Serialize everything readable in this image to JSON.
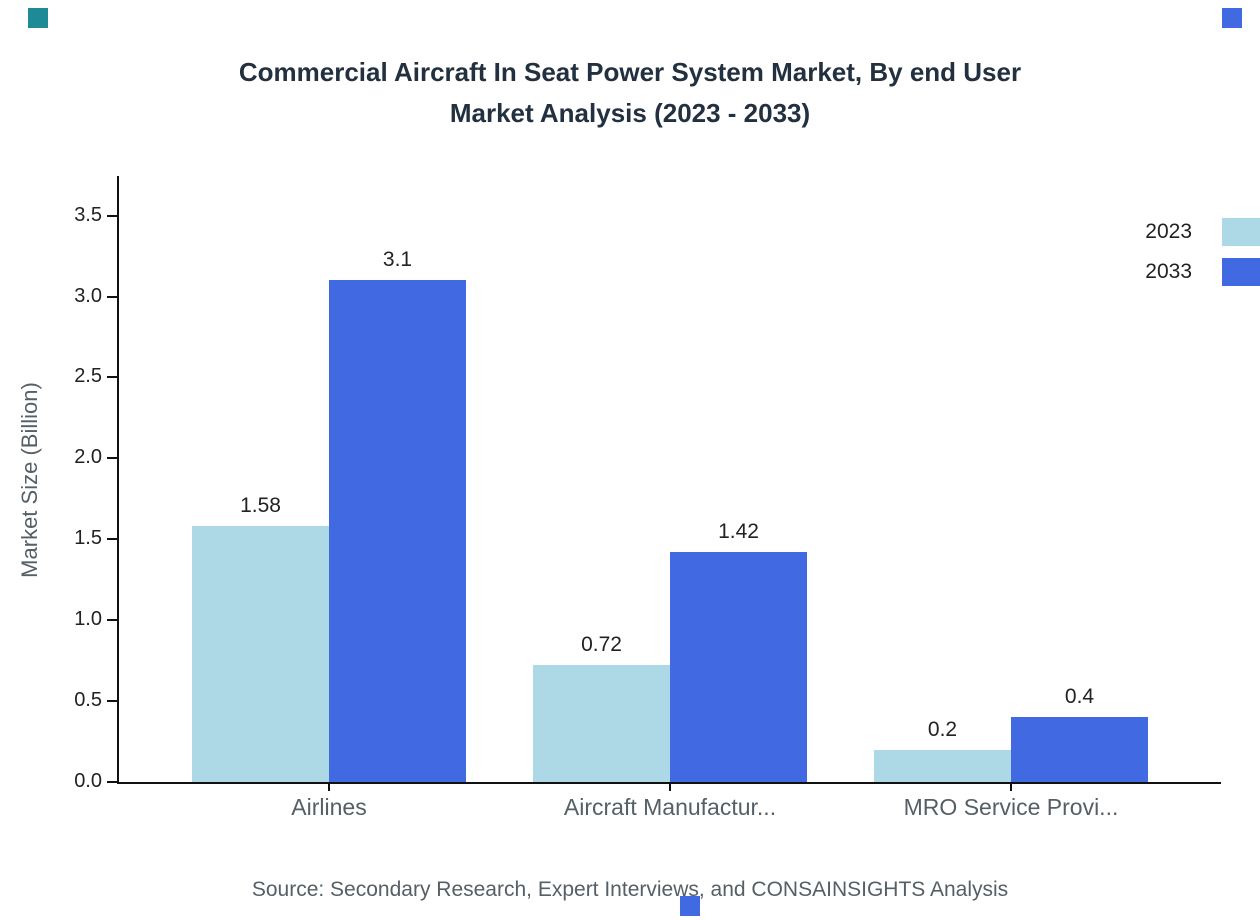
{
  "title": {
    "line1": "Commercial Aircraft In Seat Power System Market, By end User",
    "line2": "Market Analysis (2023 - 2033)"
  },
  "source": "Source: Secondary Research, Expert Interviews, and CONSAINSIGHTS Analysis",
  "colors": {
    "accent_teal": "#1D8A96",
    "accent_blue": "#4169E1",
    "series_2023": "#ADD8E6",
    "series_2033": "#4169E1",
    "axis": "#111111",
    "title_text": "#22303f",
    "muted_text": "#555f66"
  },
  "chart_data": {
    "type": "bar",
    "title": "Commercial Aircraft In Seat Power System Market, By end User Market Analysis (2023 - 2033)",
    "xlabel": "",
    "ylabel": "Market Size (Billion)",
    "categories": [
      "Airlines",
      "Aircraft Manufactur...",
      "MRO Service Provi..."
    ],
    "series": [
      {
        "name": "2023",
        "color": "#ADD8E6",
        "values": [
          1.58,
          0.72,
          0.2
        ]
      },
      {
        "name": "2033",
        "color": "#4169E1",
        "values": [
          3.1,
          1.42,
          0.4
        ]
      }
    ],
    "ylim": [
      0,
      3.72
    ],
    "yticks": [
      0.0,
      0.5,
      1.0,
      1.5,
      2.0,
      2.5,
      3.0,
      3.5
    ],
    "grid": false,
    "legend_position": "right"
  }
}
